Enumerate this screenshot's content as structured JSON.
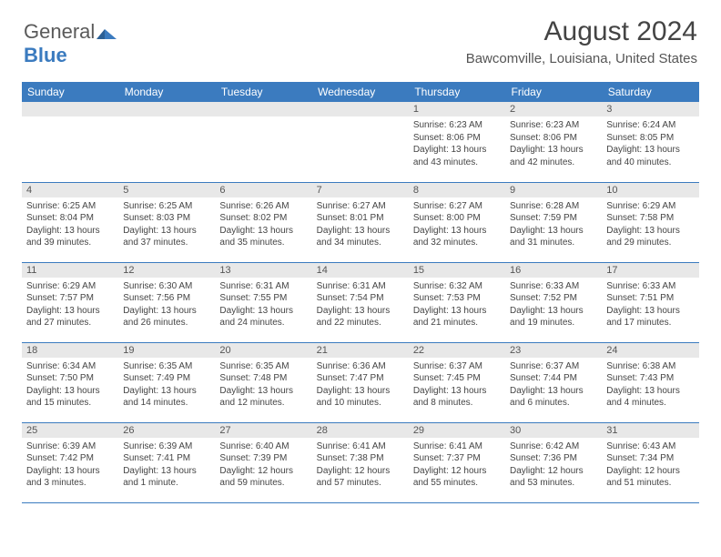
{
  "brand": {
    "text1": "General",
    "text2": "Blue"
  },
  "title": "August 2024",
  "location": "Bawcomville, Louisiana, United States",
  "colors": {
    "header_bg": "#3b7bbf",
    "header_text": "#ffffff",
    "daynum_bg": "#e8e8e8",
    "cell_border": "#3b7bbf",
    "brand_gray": "#5a5a5a",
    "brand_blue": "#3b7bbf"
  },
  "weekdays": [
    "Sunday",
    "Monday",
    "Tuesday",
    "Wednesday",
    "Thursday",
    "Friday",
    "Saturday"
  ],
  "weeks": [
    [
      null,
      null,
      null,
      null,
      {
        "n": "1",
        "sr": "Sunrise: 6:23 AM",
        "ss": "Sunset: 8:06 PM",
        "dl": "Daylight: 13 hours and 43 minutes."
      },
      {
        "n": "2",
        "sr": "Sunrise: 6:23 AM",
        "ss": "Sunset: 8:06 PM",
        "dl": "Daylight: 13 hours and 42 minutes."
      },
      {
        "n": "3",
        "sr": "Sunrise: 6:24 AM",
        "ss": "Sunset: 8:05 PM",
        "dl": "Daylight: 13 hours and 40 minutes."
      }
    ],
    [
      {
        "n": "4",
        "sr": "Sunrise: 6:25 AM",
        "ss": "Sunset: 8:04 PM",
        "dl": "Daylight: 13 hours and 39 minutes."
      },
      {
        "n": "5",
        "sr": "Sunrise: 6:25 AM",
        "ss": "Sunset: 8:03 PM",
        "dl": "Daylight: 13 hours and 37 minutes."
      },
      {
        "n": "6",
        "sr": "Sunrise: 6:26 AM",
        "ss": "Sunset: 8:02 PM",
        "dl": "Daylight: 13 hours and 35 minutes."
      },
      {
        "n": "7",
        "sr": "Sunrise: 6:27 AM",
        "ss": "Sunset: 8:01 PM",
        "dl": "Daylight: 13 hours and 34 minutes."
      },
      {
        "n": "8",
        "sr": "Sunrise: 6:27 AM",
        "ss": "Sunset: 8:00 PM",
        "dl": "Daylight: 13 hours and 32 minutes."
      },
      {
        "n": "9",
        "sr": "Sunrise: 6:28 AM",
        "ss": "Sunset: 7:59 PM",
        "dl": "Daylight: 13 hours and 31 minutes."
      },
      {
        "n": "10",
        "sr": "Sunrise: 6:29 AM",
        "ss": "Sunset: 7:58 PM",
        "dl": "Daylight: 13 hours and 29 minutes."
      }
    ],
    [
      {
        "n": "11",
        "sr": "Sunrise: 6:29 AM",
        "ss": "Sunset: 7:57 PM",
        "dl": "Daylight: 13 hours and 27 minutes."
      },
      {
        "n": "12",
        "sr": "Sunrise: 6:30 AM",
        "ss": "Sunset: 7:56 PM",
        "dl": "Daylight: 13 hours and 26 minutes."
      },
      {
        "n": "13",
        "sr": "Sunrise: 6:31 AM",
        "ss": "Sunset: 7:55 PM",
        "dl": "Daylight: 13 hours and 24 minutes."
      },
      {
        "n": "14",
        "sr": "Sunrise: 6:31 AM",
        "ss": "Sunset: 7:54 PM",
        "dl": "Daylight: 13 hours and 22 minutes."
      },
      {
        "n": "15",
        "sr": "Sunrise: 6:32 AM",
        "ss": "Sunset: 7:53 PM",
        "dl": "Daylight: 13 hours and 21 minutes."
      },
      {
        "n": "16",
        "sr": "Sunrise: 6:33 AM",
        "ss": "Sunset: 7:52 PM",
        "dl": "Daylight: 13 hours and 19 minutes."
      },
      {
        "n": "17",
        "sr": "Sunrise: 6:33 AM",
        "ss": "Sunset: 7:51 PM",
        "dl": "Daylight: 13 hours and 17 minutes."
      }
    ],
    [
      {
        "n": "18",
        "sr": "Sunrise: 6:34 AM",
        "ss": "Sunset: 7:50 PM",
        "dl": "Daylight: 13 hours and 15 minutes."
      },
      {
        "n": "19",
        "sr": "Sunrise: 6:35 AM",
        "ss": "Sunset: 7:49 PM",
        "dl": "Daylight: 13 hours and 14 minutes."
      },
      {
        "n": "20",
        "sr": "Sunrise: 6:35 AM",
        "ss": "Sunset: 7:48 PM",
        "dl": "Daylight: 13 hours and 12 minutes."
      },
      {
        "n": "21",
        "sr": "Sunrise: 6:36 AM",
        "ss": "Sunset: 7:47 PM",
        "dl": "Daylight: 13 hours and 10 minutes."
      },
      {
        "n": "22",
        "sr": "Sunrise: 6:37 AM",
        "ss": "Sunset: 7:45 PM",
        "dl": "Daylight: 13 hours and 8 minutes."
      },
      {
        "n": "23",
        "sr": "Sunrise: 6:37 AM",
        "ss": "Sunset: 7:44 PM",
        "dl": "Daylight: 13 hours and 6 minutes."
      },
      {
        "n": "24",
        "sr": "Sunrise: 6:38 AM",
        "ss": "Sunset: 7:43 PM",
        "dl": "Daylight: 13 hours and 4 minutes."
      }
    ],
    [
      {
        "n": "25",
        "sr": "Sunrise: 6:39 AM",
        "ss": "Sunset: 7:42 PM",
        "dl": "Daylight: 13 hours and 3 minutes."
      },
      {
        "n": "26",
        "sr": "Sunrise: 6:39 AM",
        "ss": "Sunset: 7:41 PM",
        "dl": "Daylight: 13 hours and 1 minute."
      },
      {
        "n": "27",
        "sr": "Sunrise: 6:40 AM",
        "ss": "Sunset: 7:39 PM",
        "dl": "Daylight: 12 hours and 59 minutes."
      },
      {
        "n": "28",
        "sr": "Sunrise: 6:41 AM",
        "ss": "Sunset: 7:38 PM",
        "dl": "Daylight: 12 hours and 57 minutes."
      },
      {
        "n": "29",
        "sr": "Sunrise: 6:41 AM",
        "ss": "Sunset: 7:37 PM",
        "dl": "Daylight: 12 hours and 55 minutes."
      },
      {
        "n": "30",
        "sr": "Sunrise: 6:42 AM",
        "ss": "Sunset: 7:36 PM",
        "dl": "Daylight: 12 hours and 53 minutes."
      },
      {
        "n": "31",
        "sr": "Sunrise: 6:43 AM",
        "ss": "Sunset: 7:34 PM",
        "dl": "Daylight: 12 hours and 51 minutes."
      }
    ]
  ]
}
